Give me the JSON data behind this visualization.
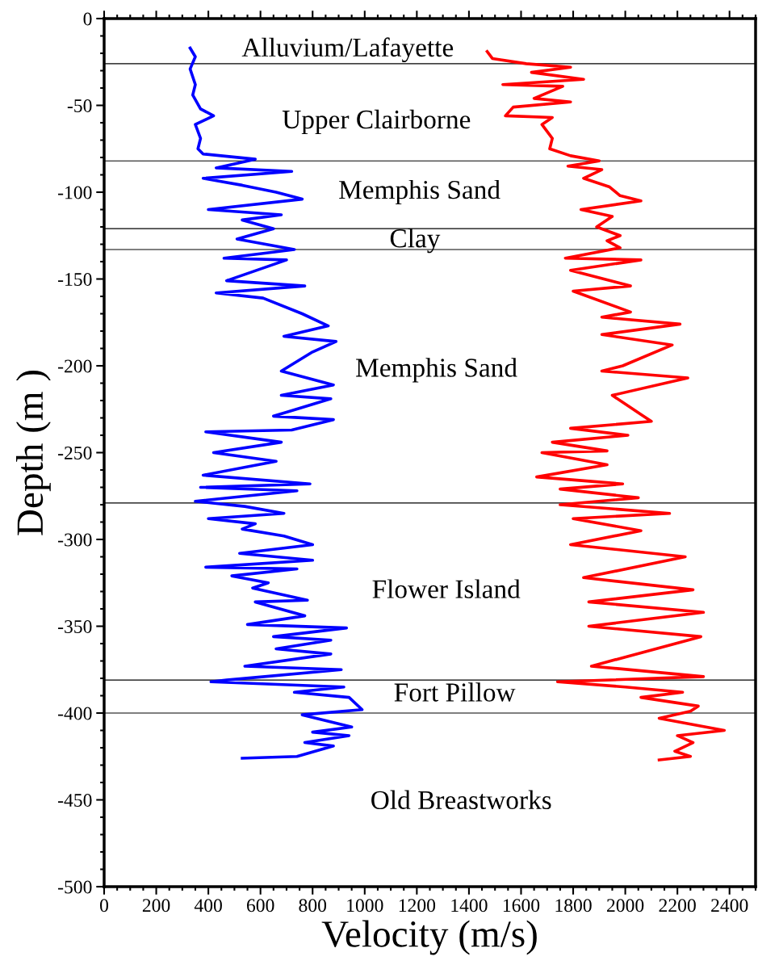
{
  "chart_data": {
    "type": "line",
    "xlabel": "Velocity (m/s)",
    "ylabel": "Depth (m )",
    "xlim": [
      0,
      2500
    ],
    "xticks": [
      0,
      200,
      400,
      600,
      800,
      1000,
      1200,
      1400,
      1600,
      1800,
      2000,
      2200,
      2400
    ],
    "ylim": [
      -500,
      0
    ],
    "yticks": [
      -500,
      -450,
      -400,
      -350,
      -300,
      -250,
      -200,
      -150,
      -100,
      -50,
      0
    ],
    "grid": false,
    "legend": false,
    "marker": "none",
    "line_style": "solid",
    "series": [
      {
        "color": "#0000ff",
        "x": [
          330,
          350,
          330,
          350,
          340,
          370,
          420,
          350,
          370,
          360,
          380,
          580,
          430,
          720,
          380,
          530,
          660,
          760,
          400,
          680,
          530,
          650,
          510,
          730,
          460,
          700,
          470,
          770,
          430,
          610,
          760,
          860,
          690,
          890,
          800,
          680,
          880,
          680,
          870,
          650,
          880,
          720,
          390,
          680,
          420,
          660,
          380,
          790,
          370,
          740,
          350,
          540,
          690,
          400,
          580,
          530,
          690,
          800,
          520,
          800,
          390,
          740,
          490,
          630,
          570,
          780,
          580,
          770,
          550,
          930,
          650,
          870,
          660,
          870,
          540,
          910,
          470,
          410,
          920,
          730,
          940,
          990,
          760,
          950,
          800,
          940,
          770,
          880,
          740,
          530
        ],
        "values": [
          -17,
          -22,
          -29,
          -38,
          -44,
          -52,
          -56,
          -61,
          -69,
          -75,
          -78,
          -81,
          -86,
          -88,
          -92,
          -96,
          -100,
          -104,
          -110,
          -113,
          -116,
          -121,
          -127,
          -133,
          -138,
          -139,
          -151,
          -154,
          -158,
          -161,
          -170,
          -177,
          -183,
          -186,
          -192,
          -203,
          -211,
          -217,
          -219,
          -229,
          -231,
          -237,
          -238,
          -244,
          -250,
          -255,
          -263,
          -268,
          -270,
          -272,
          -278,
          -281,
          -285,
          -288,
          -291,
          -294,
          -298,
          -303,
          -308,
          -312,
          -316,
          -317,
          -321,
          -325,
          -328,
          -335,
          -336,
          -344,
          -349,
          -351,
          -356,
          -358,
          -363,
          -366,
          -373,
          -375,
          -381,
          -382,
          -385,
          -388,
          -391,
          -398,
          -401,
          -408,
          -411,
          -413,
          -417,
          -419,
          -425,
          -426
        ]
      },
      {
        "color": "#ff0000",
        "x": [
          1470,
          1490,
          1620,
          1790,
          1640,
          1840,
          1530,
          1760,
          1650,
          1790,
          1570,
          1540,
          1720,
          1680,
          1720,
          1710,
          1790,
          1900,
          1780,
          1910,
          1840,
          1940,
          1980,
          2060,
          1830,
          1950,
          1890,
          1980,
          1930,
          1980,
          1770,
          2060,
          1790,
          2020,
          1800,
          2020,
          1910,
          2210,
          1910,
          2180,
          1990,
          1910,
          2240,
          1950,
          2060,
          2100,
          1790,
          2010,
          1720,
          1930,
          1680,
          1930,
          1660,
          1990,
          1750,
          2050,
          1750,
          2170,
          1800,
          2060,
          1790,
          2230,
          1840,
          2260,
          1860,
          2300,
          1860,
          2290,
          1870,
          2300,
          1740,
          2000,
          2220,
          2060,
          2280,
          2250,
          2130,
          2380,
          2200,
          2260,
          2190,
          2250,
          2130
        ],
        "values": [
          -19,
          -23,
          -26,
          -28,
          -31,
          -35,
          -38,
          -39,
          -46,
          -48,
          -51,
          -56,
          -57,
          -61,
          -69,
          -75,
          -79,
          -82,
          -85,
          -87,
          -92,
          -97,
          -102,
          -105,
          -110,
          -114,
          -120,
          -125,
          -128,
          -132,
          -138,
          -139,
          -145,
          -154,
          -157,
          -169,
          -172,
          -176,
          -182,
          -188,
          -200,
          -203,
          -207,
          -217,
          -228,
          -232,
          -236,
          -240,
          -244,
          -249,
          -250,
          -257,
          -264,
          -268,
          -271,
          -276,
          -280,
          -285,
          -288,
          -295,
          -303,
          -310,
          -322,
          -329,
          -336,
          -342,
          -350,
          -356,
          -373,
          -379,
          -382,
          -385,
          -388,
          -391,
          -396,
          -399,
          -403,
          -410,
          -413,
          -417,
          -422,
          -425,
          -427
        ]
      }
    ],
    "ref_lines": [
      {
        "axis": "y",
        "value": -26,
        "color": "#000000"
      },
      {
        "axis": "y",
        "value": -82,
        "color": "#000000"
      },
      {
        "axis": "y",
        "value": -121,
        "color": "#000000"
      },
      {
        "axis": "y",
        "value": -133,
        "color": "#000000"
      },
      {
        "axis": "y",
        "value": -279,
        "color": "#000000"
      },
      {
        "axis": "y",
        "value": -381,
        "color": "#000000"
      },
      {
        "axis": "y",
        "value": -400,
        "color": "#000000"
      }
    ],
    "annotations": [
      "Alluvium/Lafayette",
      "Upper Clairborne",
      "Memphis Sand",
      "Clay",
      "Memphis Sand",
      "Flower Island",
      "Fort Pillow",
      "Old Breastworks"
    ]
  }
}
